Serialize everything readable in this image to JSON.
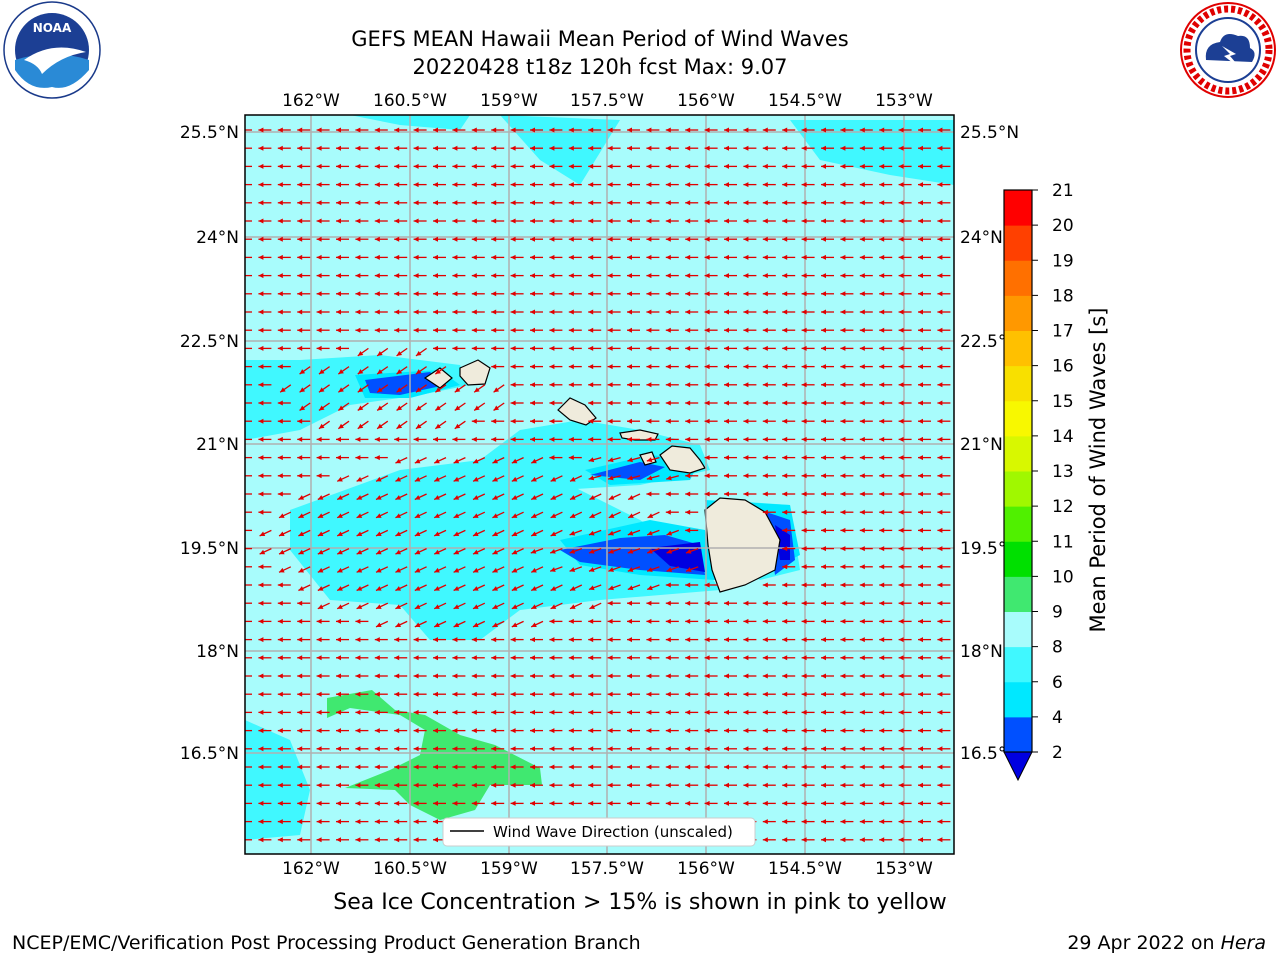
{
  "header": {
    "title_line1": "GEFS MEAN Hawaii Mean Period of Wind Waves",
    "title_line2": "20220428 t18z 120h fcst   Max: 9.07"
  },
  "logos": {
    "left": "NOAA",
    "left_ring_text": "NATIONAL OCEANIC AND ATMOSPHERIC ADMINISTRATION · U.S. DEPARTMENT OF COMMERCE",
    "right_ring_text": "NATIONAL WEATHER SERVICE"
  },
  "map": {
    "lon_ticks": [
      "162°W",
      "160.5°W",
      "159°W",
      "157.5°W",
      "156°W",
      "154.5°W",
      "153°W"
    ],
    "lat_ticks_left": [
      "25.5°N",
      "24°N",
      "22.5°N",
      "21°N",
      "19.5°N",
      "18°N",
      "16.5°N"
    ],
    "lat_ticks_right": [
      "25.5°N",
      "24°N",
      "22.5°N",
      "21°N",
      "19.5°N",
      "18°N",
      "16.5°N"
    ],
    "legend_label": "Wind Wave Direction (unscaled)",
    "vector_color": "#e00000",
    "background_color": "#a8fcfc"
  },
  "colorbar": {
    "label": "Mean Period of Wind Waves [s]",
    "ticks": [
      "2",
      "4",
      "6",
      "8",
      "9",
      "10",
      "11",
      "12",
      "13",
      "14",
      "15",
      "16",
      "17",
      "18",
      "19",
      "20",
      "21"
    ],
    "colors": [
      "#0050ff",
      "#00e8ff",
      "#40f8ff",
      "#a8fcfc",
      "#40e870",
      "#00e000",
      "#50f000",
      "#a0f800",
      "#d8f800",
      "#f8f800",
      "#f8e000",
      "#ffc000",
      "#ff9800",
      "#ff7000",
      "#ff4000",
      "#ff0000"
    ],
    "extend_color": "#0000e0"
  },
  "footer": {
    "note": "Sea Ice Concentration > 15% is shown in pink to yellow",
    "credit": "NCEP/EMC/Verification Post Processing Product Generation Branch",
    "date": "29 Apr 2022 on ",
    "host": "Hera"
  }
}
